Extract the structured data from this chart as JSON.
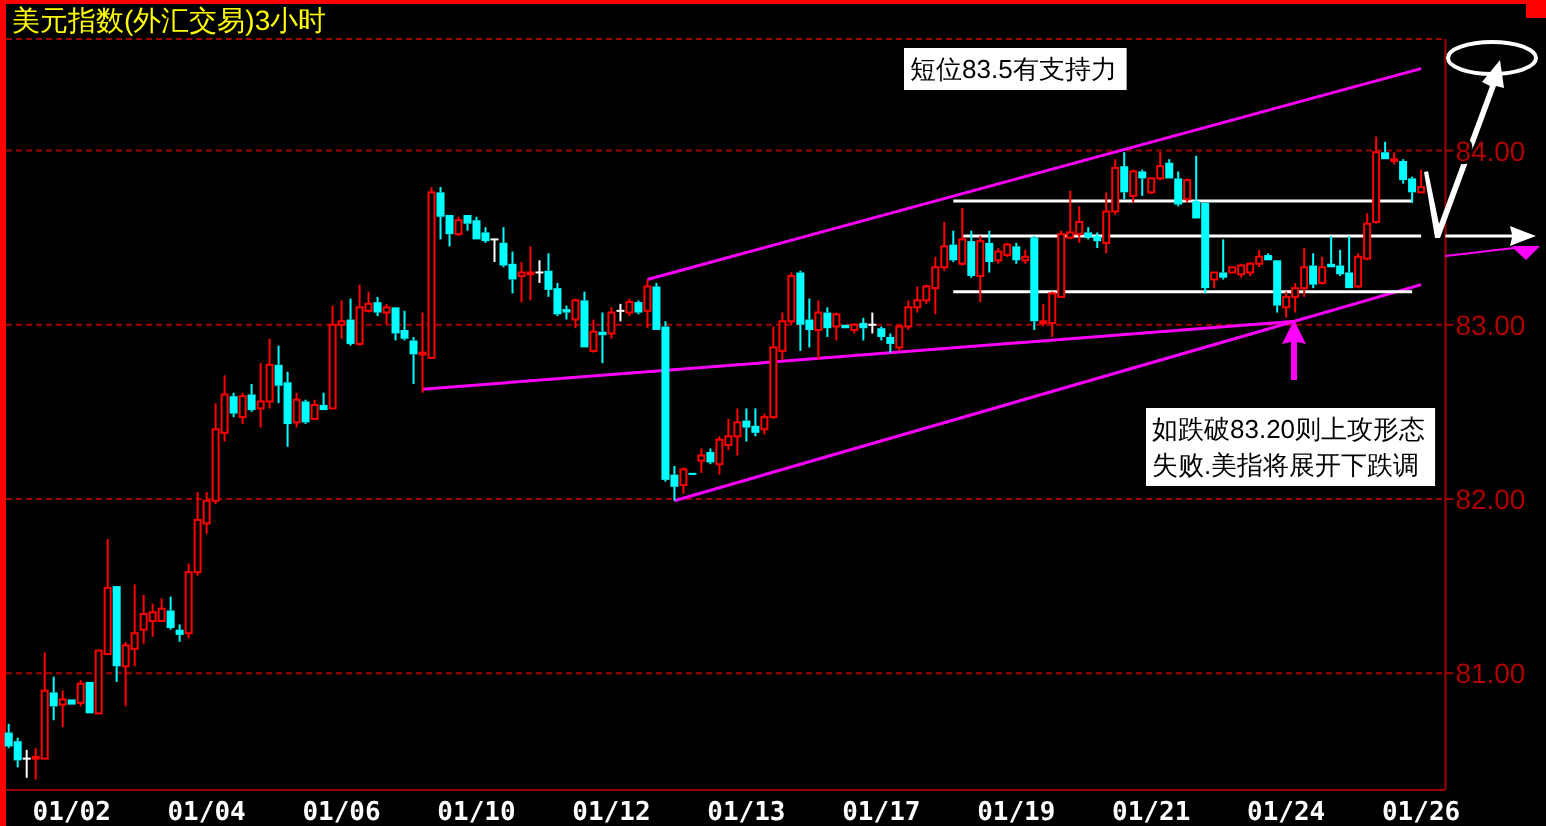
{
  "chart_data": {
    "type": "candlestick",
    "title": "美元指数(外汇交易)3小时",
    "categories": [
      null,
      null,
      null,
      null,
      null,
      null,
      null,
      "01/02",
      null,
      null,
      null,
      null,
      null,
      null,
      null,
      null,
      null,
      null,
      null,
      null,
      null,
      null,
      "01/04",
      null,
      null,
      null,
      null,
      null,
      null,
      null,
      null,
      null,
      null,
      null,
      null,
      null,
      null,
      "01/06",
      null,
      null,
      null,
      null,
      null,
      null,
      null,
      null,
      null,
      null,
      null,
      null,
      null,
      null,
      "01/10",
      null,
      null,
      null,
      null,
      null,
      null,
      null,
      null,
      null,
      null,
      null,
      null,
      null,
      null,
      "01/12",
      null,
      null,
      null,
      null,
      null,
      null,
      null,
      null,
      null,
      null,
      null,
      null,
      null,
      null,
      "01/13",
      null,
      null,
      null,
      null,
      null,
      null,
      null,
      null,
      null,
      null,
      null,
      null,
      null,
      null,
      "01/17",
      null,
      null,
      null,
      null,
      null,
      null,
      null,
      null,
      null,
      null,
      null,
      null,
      null,
      null,
      "01/19",
      null,
      null,
      null,
      null,
      null,
      null,
      null,
      null,
      null,
      null,
      null,
      null,
      null,
      null,
      "01/21",
      null,
      null,
      null,
      null,
      null,
      null,
      null,
      null,
      null,
      null,
      null,
      null,
      null,
      null,
      "01/24",
      null,
      null,
      null,
      null,
      null,
      null,
      null,
      null,
      null,
      null,
      null,
      null,
      null,
      null,
      "01/26"
    ],
    "ohlc": [
      [
        80.66,
        80.71,
        80.57,
        80.58
      ],
      [
        80.61,
        80.63,
        80.46,
        80.5
      ],
      [
        80.51,
        80.56,
        80.4,
        80.51
      ],
      [
        80.51,
        80.57,
        80.39,
        80.52
      ],
      [
        80.51,
        81.12,
        80.51,
        80.9
      ],
      [
        80.89,
        80.98,
        80.73,
        80.81
      ],
      [
        80.82,
        80.9,
        80.69,
        80.85
      ],
      [
        80.85,
        80.85,
        80.82,
        80.82
      ],
      [
        80.83,
        80.96,
        80.81,
        80.94
      ],
      [
        80.95,
        80.95,
        80.77,
        80.77
      ],
      [
        80.77,
        81.13,
        80.77,
        81.13
      ],
      [
        81.11,
        81.77,
        81.11,
        81.49
      ],
      [
        81.5,
        81.5,
        80.95,
        81.04
      ],
      [
        81.04,
        81.18,
        80.81,
        81.16
      ],
      [
        81.14,
        81.51,
        81.04,
        81.23
      ],
      [
        81.25,
        81.45,
        81.17,
        81.34
      ],
      [
        81.3,
        81.4,
        81.21,
        81.35
      ],
      [
        81.3,
        81.43,
        81.3,
        81.37
      ],
      [
        81.36,
        81.44,
        81.25,
        81.26
      ],
      [
        81.25,
        81.28,
        81.18,
        81.22
      ],
      [
        81.23,
        81.63,
        81.2,
        81.58
      ],
      [
        81.58,
        82.04,
        81.56,
        81.88
      ],
      [
        81.86,
        82.04,
        81.8,
        81.99
      ],
      [
        81.99,
        82.55,
        81.97,
        82.4
      ],
      [
        82.38,
        82.71,
        82.33,
        82.6
      ],
      [
        82.59,
        82.61,
        82.47,
        82.49
      ],
      [
        82.47,
        82.61,
        82.43,
        82.59
      ],
      [
        82.6,
        82.66,
        82.5,
        82.51
      ],
      [
        82.52,
        82.78,
        82.41,
        82.56
      ],
      [
        82.56,
        82.92,
        82.52,
        82.77
      ],
      [
        82.77,
        82.88,
        82.55,
        82.65
      ],
      [
        82.67,
        82.73,
        82.3,
        82.43
      ],
      [
        82.44,
        82.61,
        82.41,
        82.57
      ],
      [
        82.56,
        82.57,
        82.43,
        82.44
      ],
      [
        82.46,
        82.57,
        82.46,
        82.54
      ],
      [
        82.54,
        82.61,
        82.51,
        82.51
      ],
      [
        82.52,
        83.11,
        82.52,
        83.0
      ],
      [
        83.0,
        83.14,
        82.92,
        83.02
      ],
      [
        83.03,
        83.15,
        82.88,
        82.89
      ],
      [
        82.89,
        83.23,
        82.88,
        83.1
      ],
      [
        83.08,
        83.19,
        83.07,
        83.12
      ],
      [
        83.13,
        83.16,
        83.05,
        83.07
      ],
      [
        83.07,
        83.12,
        83.0,
        83.1
      ],
      [
        83.1,
        83.1,
        82.91,
        82.95
      ],
      [
        82.97,
        83.08,
        82.91,
        82.92
      ],
      [
        82.91,
        82.93,
        82.66,
        82.83
      ],
      [
        82.83,
        83.07,
        82.61,
        82.84
      ],
      [
        82.81,
        83.79,
        82.81,
        83.76
      ],
      [
        83.76,
        83.79,
        83.49,
        83.62
      ],
      [
        83.63,
        83.63,
        83.45,
        83.52
      ],
      [
        83.52,
        83.62,
        83.51,
        83.6
      ],
      [
        83.63,
        83.63,
        83.54,
        83.58
      ],
      [
        83.6,
        83.62,
        83.49,
        83.49
      ],
      [
        83.53,
        83.56,
        83.47,
        83.48
      ],
      [
        83.49,
        83.49,
        83.36,
        83.49
      ],
      [
        83.47,
        83.56,
        83.33,
        83.34
      ],
      [
        83.35,
        83.42,
        83.18,
        83.26
      ],
      [
        83.28,
        83.36,
        83.13,
        83.3
      ],
      [
        83.29,
        83.45,
        83.14,
        83.3
      ],
      [
        83.3,
        83.37,
        83.24,
        83.3
      ],
      [
        83.31,
        83.41,
        83.16,
        83.2
      ],
      [
        83.21,
        83.24,
        83.05,
        83.06
      ],
      [
        83.09,
        83.11,
        83.03,
        83.07
      ],
      [
        83.03,
        83.15,
        82.98,
        83.14
      ],
      [
        83.14,
        83.19,
        82.87,
        82.87
      ],
      [
        82.85,
        83.03,
        82.84,
        82.96
      ],
      [
        82.96,
        83.07,
        82.78,
        82.94
      ],
      [
        82.95,
        83.1,
        82.92,
        83.07
      ],
      [
        83.08,
        83.12,
        83.02,
        83.08
      ],
      [
        83.07,
        83.15,
        83.05,
        83.13
      ],
      [
        83.13,
        83.14,
        83.06,
        83.07
      ],
      [
        83.08,
        83.26,
        82.98,
        83.22
      ],
      [
        83.22,
        83.24,
        82.97,
        82.97
      ],
      [
        82.99,
        83.02,
        82.1,
        82.11
      ],
      [
        82.14,
        82.19,
        81.99,
        82.07
      ],
      [
        82.08,
        82.18,
        82.03,
        82.17
      ],
      [
        82.15,
        82.15,
        82.14,
        82.14
      ],
      [
        82.22,
        82.29,
        82.15,
        82.25
      ],
      [
        82.27,
        82.29,
        82.2,
        82.21
      ],
      [
        82.2,
        82.36,
        82.14,
        82.34
      ],
      [
        82.31,
        82.46,
        82.28,
        82.36
      ],
      [
        82.36,
        82.52,
        82.25,
        82.44
      ],
      [
        82.45,
        82.52,
        82.33,
        82.41
      ],
      [
        82.42,
        82.52,
        82.36,
        82.38
      ],
      [
        82.4,
        82.49,
        82.37,
        82.47
      ],
      [
        82.47,
        82.99,
        82.46,
        82.87
      ],
      [
        82.85,
        83.07,
        82.8,
        83.02
      ],
      [
        83.02,
        83.3,
        83.0,
        83.28
      ],
      [
        83.3,
        83.31,
        82.85,
        83.0
      ],
      [
        83.03,
        83.15,
        82.87,
        82.97
      ],
      [
        82.97,
        83.14,
        82.8,
        83.07
      ],
      [
        83.07,
        83.1,
        82.93,
        82.98
      ],
      [
        82.99,
        83.07,
        82.91,
        83.06
      ],
      [
        83.0,
        83.0,
        82.98,
        82.98
      ],
      [
        82.97,
        83.01,
        82.95,
        83.0
      ],
      [
        83.01,
        83.04,
        82.91,
        82.98
      ],
      [
        83.0,
        83.07,
        82.95,
        83.0
      ],
      [
        82.98,
        82.99,
        82.91,
        82.93
      ],
      [
        82.93,
        82.95,
        82.84,
        82.89
      ],
      [
        82.87,
        83.0,
        82.85,
        82.99
      ],
      [
        82.99,
        83.14,
        82.97,
        83.1
      ],
      [
        83.1,
        83.22,
        83.07,
        83.14
      ],
      [
        83.14,
        83.23,
        83.12,
        83.22
      ],
      [
        83.21,
        83.39,
        83.06,
        83.33
      ],
      [
        83.33,
        83.59,
        83.31,
        83.45
      ],
      [
        83.46,
        83.54,
        83.36,
        83.37
      ],
      [
        83.35,
        83.67,
        83.34,
        83.49
      ],
      [
        83.48,
        83.54,
        83.27,
        83.28
      ],
      [
        83.28,
        83.51,
        83.13,
        83.48
      ],
      [
        83.47,
        83.54,
        83.3,
        83.36
      ],
      [
        83.37,
        83.44,
        83.35,
        83.42
      ],
      [
        83.4,
        83.47,
        83.39,
        83.46
      ],
      [
        83.45,
        83.47,
        83.35,
        83.37
      ],
      [
        83.37,
        83.43,
        83.35,
        83.39
      ],
      [
        83.5,
        83.51,
        82.97,
        83.02
      ],
      [
        83.01,
        83.12,
        82.99,
        83.02
      ],
      [
        83.01,
        83.19,
        82.93,
        83.18
      ],
      [
        83.16,
        83.54,
        83.16,
        83.52
      ],
      [
        83.5,
        83.77,
        83.49,
        83.53
      ],
      [
        83.52,
        83.68,
        83.47,
        83.59
      ],
      [
        83.53,
        83.56,
        83.49,
        83.5
      ],
      [
        83.51,
        83.53,
        83.44,
        83.48
      ],
      [
        83.47,
        83.76,
        83.41,
        83.65
      ],
      [
        83.65,
        83.95,
        83.63,
        83.9
      ],
      [
        83.91,
        83.99,
        83.72,
        83.76
      ],
      [
        83.74,
        83.89,
        83.7,
        83.88
      ],
      [
        83.88,
        83.89,
        83.74,
        83.84
      ],
      [
        83.76,
        83.84,
        83.75,
        83.84
      ],
      [
        83.84,
        83.99,
        83.83,
        83.91
      ],
      [
        83.93,
        83.95,
        83.84,
        83.84
      ],
      [
        83.84,
        83.88,
        83.68,
        83.69
      ],
      [
        83.72,
        83.84,
        83.7,
        83.83
      ],
      [
        83.71,
        83.97,
        83.61,
        83.61
      ],
      [
        83.7,
        83.7,
        83.18,
        83.21
      ],
      [
        83.26,
        83.3,
        83.21,
        83.3
      ],
      [
        83.3,
        83.49,
        83.26,
        83.27
      ],
      [
        83.3,
        83.33,
        83.3,
        83.33
      ],
      [
        83.29,
        83.35,
        83.27,
        83.34
      ],
      [
        83.3,
        83.36,
        83.28,
        83.35
      ],
      [
        83.35,
        83.43,
        83.33,
        83.39
      ],
      [
        83.4,
        83.41,
        83.37,
        83.37
      ],
      [
        83.37,
        83.37,
        83.07,
        83.11
      ],
      [
        83.1,
        83.19,
        83.04,
        83.16
      ],
      [
        83.16,
        83.24,
        83.07,
        83.21
      ],
      [
        83.21,
        83.44,
        83.16,
        83.33
      ],
      [
        83.34,
        83.41,
        83.21,
        83.23
      ],
      [
        83.24,
        83.39,
        83.23,
        83.33
      ],
      [
        83.35,
        83.51,
        83.33,
        83.33
      ],
      [
        83.34,
        83.43,
        83.28,
        83.29
      ],
      [
        83.3,
        83.51,
        83.21,
        83.21
      ],
      [
        83.22,
        83.41,
        83.21,
        83.39
      ],
      [
        83.38,
        83.64,
        83.37,
        83.58
      ],
      [
        83.59,
        84.08,
        83.58,
        83.99
      ],
      [
        83.99,
        84.05,
        83.95,
        83.95
      ],
      [
        83.94,
        83.99,
        83.92,
        83.95
      ],
      [
        83.94,
        83.95,
        83.81,
        83.83
      ],
      [
        83.84,
        83.85,
        83.7,
        83.76
      ],
      [
        83.76,
        83.89,
        83.76,
        83.79
      ]
    ],
    "colors": [
      "#00ffff",
      "#00ffff",
      "#ffffff",
      "#ff0000",
      "#ff0000",
      "#00ffff",
      "#ff0000",
      "#00ffff",
      "#ff0000",
      "#00ffff",
      "#ff0000",
      "#ff0000",
      "#00ffff",
      "#ff0000",
      "#ff0000",
      "#ff0000",
      "#ff0000",
      "#ff0000",
      "#00ffff",
      "#00ffff",
      "#ff0000",
      "#ff0000",
      "#ff0000",
      "#ff0000",
      "#ff0000",
      "#00ffff",
      "#ff0000",
      "#00ffff",
      "#ff0000",
      "#ff0000",
      "#00ffff",
      "#00ffff",
      "#ff0000",
      "#00ffff",
      "#ff0000",
      "#00ffff",
      "#ff0000",
      "#ff0000",
      "#00ffff",
      "#ff0000",
      "#ff0000",
      "#00ffff",
      "#ff0000",
      "#00ffff",
      "#00ffff",
      "#00ffff",
      "#ff0000",
      "#ff0000",
      "#00ffff",
      "#00ffff",
      "#ff0000",
      "#00ffff",
      "#00ffff",
      "#00ffff",
      "#ffffff",
      "#00ffff",
      "#00ffff",
      "#ff0000",
      "#ff0000",
      "#ffffff",
      "#00ffff",
      "#00ffff",
      "#00ffff",
      "#ff0000",
      "#00ffff",
      "#ff0000",
      "#00ffff",
      "#ff0000",
      "#ffffff",
      "#ff0000",
      "#00ffff",
      "#ff0000",
      "#00ffff",
      "#00ffff",
      "#00ffff",
      "#ff0000",
      "#00ffff",
      "#ff0000",
      "#00ffff",
      "#ff0000",
      "#ff0000",
      "#ff0000",
      "#00ffff",
      "#00ffff",
      "#ff0000",
      "#ff0000",
      "#ff0000",
      "#ff0000",
      "#00ffff",
      "#00ffff",
      "#ff0000",
      "#00ffff",
      "#ff0000",
      "#00ffff",
      "#ff0000",
      "#00ffff",
      "#ffffff",
      "#00ffff",
      "#00ffff",
      "#ff0000",
      "#ff0000",
      "#ff0000",
      "#ff0000",
      "#ff0000",
      "#ff0000",
      "#00ffff",
      "#ff0000",
      "#00ffff",
      "#ff0000",
      "#00ffff",
      "#ff0000",
      "#ff0000",
      "#00ffff",
      "#ff0000",
      "#00ffff",
      "#ff0000",
      "#ff0000",
      "#ff0000",
      "#ff0000",
      "#ff0000",
      "#00ffff",
      "#00ffff",
      "#ff0000",
      "#ff0000",
      "#00ffff",
      "#ff0000",
      "#00ffff",
      "#ff0000",
      "#ff0000",
      "#00ffff",
      "#00ffff",
      "#ff0000",
      "#00ffff",
      "#00ffff",
      "#ff0000",
      "#00ffff",
      "#ff0000",
      "#ff0000",
      "#ff0000",
      "#ff0000",
      "#00ffff",
      "#00ffff",
      "#ff0000",
      "#ff0000",
      "#ff0000",
      "#00ffff",
      "#ff0000",
      "#00ffff",
      "#00ffff",
      "#00ffff",
      "#ff0000",
      "#ff0000",
      "#ff0000",
      "#00ffff",
      "#ff0000",
      "#00ffff",
      "#00ffff",
      "#ff0000"
    ],
    "series": [
      {
        "type": "line",
        "color": "#ff00ff",
        "values": [
          null,
          null,
          null,
          null,
          null,
          null,
          null,
          null,
          null,
          null,
          null,
          null,
          null,
          null,
          null,
          null,
          null,
          null,
          null,
          null,
          null,
          null,
          null,
          null,
          null,
          null,
          null,
          null,
          null,
          null,
          null,
          null,
          null,
          null,
          null,
          null,
          null,
          null,
          null,
          null,
          null,
          null,
          null,
          null,
          null,
          null,
          82.63,
          null,
          null,
          null,
          null,
          null,
          null,
          null,
          null,
          null,
          null,
          null,
          null,
          null,
          null,
          null,
          null,
          null,
          null,
          null,
          null,
          null,
          null,
          null,
          null,
          null,
          null,
          null,
          null,
          null,
          null,
          null,
          null,
          null,
          null,
          null,
          null,
          null,
          null,
          null,
          null,
          null,
          null,
          null,
          null,
          null,
          null,
          null,
          null,
          null,
          null,
          null,
          null,
          null,
          null,
          null,
          null,
          null,
          null,
          null,
          null,
          null,
          null,
          null,
          null,
          null,
          null,
          null,
          null,
          null,
          null,
          null,
          null,
          null,
          null,
          null,
          null,
          null,
          null,
          null,
          null,
          null,
          null,
          null,
          null,
          null,
          null,
          null,
          null,
          null,
          null,
          null,
          null,
          null,
          null,
          null,
          null,
          83.02,
          null,
          null,
          null,
          null,
          null,
          null,
          null,
          null,
          null,
          null,
          null,
          null,
          null,
          null
        ]
      },
      {
        "type": "line",
        "color": "#ff00ff",
        "values": [
          null,
          null,
          null,
          null,
          null,
          null,
          null,
          null,
          null,
          null,
          null,
          null,
          null,
          null,
          null,
          null,
          null,
          null,
          null,
          null,
          null,
          null,
          null,
          null,
          null,
          null,
          null,
          null,
          null,
          null,
          null,
          null,
          null,
          null,
          null,
          null,
          null,
          null,
          null,
          null,
          null,
          null,
          null,
          null,
          null,
          null,
          null,
          null,
          null,
          null,
          null,
          null,
          null,
          null,
          null,
          null,
          null,
          null,
          null,
          null,
          null,
          null,
          null,
          null,
          null,
          null,
          null,
          null,
          null,
          null,
          null,
          83.26,
          null,
          null,
          null,
          null,
          null,
          null,
          null,
          null,
          null,
          null,
          null,
          null,
          null,
          null,
          null,
          null,
          null,
          null,
          null,
          null,
          null,
          null,
          null,
          null,
          null,
          null,
          null,
          null,
          null,
          null,
          null,
          null,
          null,
          null,
          null,
          null,
          null,
          null,
          null,
          null,
          null,
          null,
          null,
          null,
          null,
          null,
          null,
          null,
          null,
          null,
          null,
          null,
          null,
          null,
          null,
          null,
          null,
          null,
          null,
          null,
          null,
          null,
          null,
          null,
          null,
          null,
          null,
          null,
          null,
          null,
          null,
          null,
          null,
          null,
          null,
          null,
          null,
          null,
          null,
          null,
          null,
          null,
          null,
          null,
          null,
          84.47
        ]
      },
      {
        "type": "line",
        "color": "#ff00ff",
        "values": [
          null,
          null,
          null,
          null,
          null,
          null,
          null,
          null,
          null,
          null,
          null,
          null,
          null,
          null,
          null,
          null,
          null,
          null,
          null,
          null,
          null,
          null,
          null,
          null,
          null,
          null,
          null,
          null,
          null,
          null,
          null,
          null,
          null,
          null,
          null,
          null,
          null,
          null,
          null,
          null,
          null,
          null,
          null,
          null,
          null,
          null,
          null,
          null,
          null,
          null,
          null,
          null,
          null,
          null,
          null,
          null,
          null,
          null,
          null,
          null,
          null,
          null,
          null,
          null,
          null,
          null,
          null,
          null,
          null,
          null,
          null,
          null,
          null,
          null,
          81.99,
          null,
          null,
          null,
          null,
          null,
          null,
          null,
          null,
          null,
          null,
          null,
          null,
          null,
          null,
          null,
          null,
          null,
          null,
          null,
          null,
          null,
          null,
          null,
          null,
          null,
          null,
          null,
          null,
          null,
          null,
          null,
          null,
          null,
          null,
          null,
          null,
          null,
          null,
          null,
          null,
          null,
          null,
          null,
          null,
          null,
          null,
          null,
          null,
          null,
          null,
          null,
          null,
          null,
          null,
          null,
          null,
          null,
          null,
          null,
          null,
          null,
          null,
          null,
          null,
          null,
          null,
          null,
          null,
          null,
          null,
          null,
          null,
          null,
          null,
          null,
          null,
          null,
          null,
          null,
          null,
          null,
          null,
          83.23
        ]
      },
      {
        "type": "line",
        "color": "#ffffff",
        "values": [
          null,
          null,
          null,
          null,
          null,
          null,
          null,
          null,
          null,
          null,
          null,
          null,
          null,
          null,
          null,
          null,
          null,
          null,
          null,
          null,
          null,
          null,
          null,
          null,
          null,
          null,
          null,
          null,
          null,
          null,
          null,
          null,
          null,
          null,
          null,
          null,
          null,
          null,
          null,
          null,
          null,
          null,
          null,
          null,
          null,
          null,
          null,
          null,
          null,
          null,
          null,
          null,
          null,
          null,
          null,
          null,
          null,
          null,
          null,
          null,
          null,
          null,
          null,
          null,
          null,
          null,
          null,
          null,
          null,
          null,
          null,
          null,
          null,
          null,
          null,
          null,
          null,
          null,
          null,
          null,
          null,
          null,
          null,
          null,
          null,
          null,
          null,
          null,
          null,
          null,
          null,
          null,
          null,
          null,
          null,
          null,
          null,
          null,
          null,
          null,
          null,
          null,
          null,
          null,
          null,
          83.71,
          null,
          null,
          null,
          null,
          null,
          null,
          null,
          null,
          null,
          null,
          null,
          null,
          null,
          null,
          null,
          null,
          null,
          null,
          null,
          null,
          null,
          null,
          null,
          null,
          null,
          null,
          null,
          null,
          null,
          null,
          null,
          null,
          null,
          null,
          null,
          null,
          null,
          null,
          null,
          null,
          null,
          null,
          null,
          null,
          null,
          null,
          null,
          null,
          null,
          null,
          83.71,
          null
        ]
      },
      {
        "type": "line",
        "color": "#ffffff",
        "values": [
          null,
          null,
          null,
          null,
          null,
          null,
          null,
          null,
          null,
          null,
          null,
          null,
          null,
          null,
          null,
          null,
          null,
          null,
          null,
          null,
          null,
          null,
          null,
          null,
          null,
          null,
          null,
          null,
          null,
          null,
          null,
          null,
          null,
          null,
          null,
          null,
          null,
          null,
          null,
          null,
          null,
          null,
          null,
          null,
          null,
          null,
          null,
          null,
          null,
          null,
          null,
          null,
          null,
          null,
          null,
          null,
          null,
          null,
          null,
          null,
          null,
          null,
          null,
          null,
          null,
          null,
          null,
          null,
          null,
          null,
          null,
          null,
          null,
          null,
          null,
          null,
          null,
          null,
          null,
          null,
          null,
          null,
          null,
          null,
          null,
          null,
          null,
          null,
          null,
          null,
          null,
          null,
          null,
          null,
          null,
          null,
          null,
          null,
          null,
          null,
          null,
          null,
          null,
          null,
          null,
          83.19,
          null,
          null,
          null,
          null,
          null,
          null,
          null,
          null,
          null,
          null,
          null,
          null,
          null,
          null,
          null,
          null,
          null,
          null,
          null,
          null,
          null,
          null,
          null,
          null,
          null,
          null,
          null,
          null,
          null,
          null,
          null,
          null,
          null,
          null,
          null,
          null,
          null,
          null,
          null,
          null,
          null,
          null,
          null,
          null,
          null,
          null,
          null,
          null,
          null,
          null,
          83.19,
          null
        ]
      },
      {
        "type": "line",
        "color": "#ffffff",
        "values": [
          null,
          null,
          null,
          null,
          null,
          null,
          null,
          null,
          null,
          null,
          null,
          null,
          null,
          null,
          null,
          null,
          null,
          null,
          null,
          null,
          null,
          null,
          null,
          null,
          null,
          null,
          null,
          null,
          null,
          null,
          null,
          null,
          null,
          null,
          null,
          null,
          null,
          null,
          null,
          null,
          null,
          null,
          null,
          null,
          null,
          null,
          null,
          null,
          null,
          null,
          null,
          null,
          null,
          null,
          null,
          null,
          null,
          null,
          null,
          null,
          null,
          null,
          null,
          null,
          null,
          null,
          null,
          null,
          null,
          null,
          null,
          null,
          null,
          null,
          null,
          null,
          null,
          null,
          null,
          null,
          null,
          null,
          null,
          null,
          null,
          null,
          null,
          null,
          null,
          null,
          null,
          null,
          null,
          null,
          null,
          null,
          null,
          null,
          null,
          null,
          null,
          null,
          null,
          null,
          null,
          null,
          83.51,
          null,
          null,
          null,
          null,
          null,
          null,
          null,
          null,
          null,
          null,
          null,
          null,
          null,
          null,
          null,
          null,
          null,
          null,
          null,
          null,
          null,
          null,
          null,
          null,
          null,
          null,
          null,
          null,
          null,
          null,
          null,
          null,
          null,
          null,
          null,
          null,
          null,
          null,
          null,
          null,
          null,
          null,
          null,
          null,
          null,
          null,
          null,
          null,
          null,
          null,
          83.51
        ]
      }
    ],
    "annotations": [
      "短位83.5有支持力",
      "如跌破83.20则上攻形态失败.美指将展开下跌调"
    ],
    "ylim": [
      80.33,
      84.64
    ],
    "yticks": [
      {
        "value": 81,
        "label": "81.00"
      },
      {
        "value": 82,
        "label": "82.00"
      },
      {
        "value": 83,
        "label": "83.00"
      },
      {
        "value": 84,
        "label": "84.00"
      }
    ],
    "grid": "y"
  }
}
